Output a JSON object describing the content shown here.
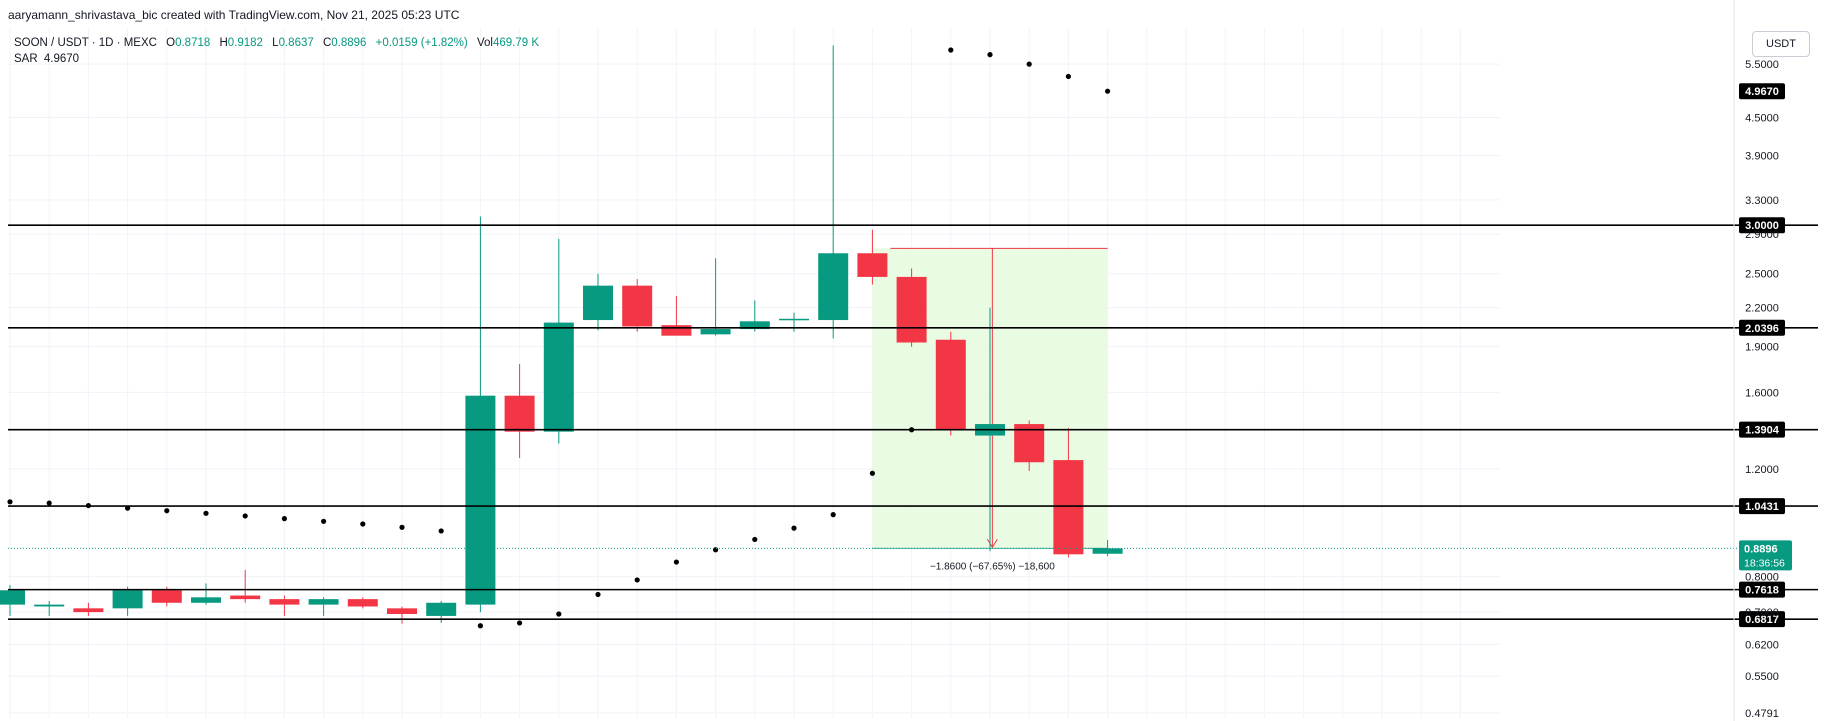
{
  "header": {
    "attribution": "aaryamann_shrivastava_bic created with TradingView.com, Nov 21, 2025 05:23 UTC"
  },
  "legend": {
    "symbol": "SOON / USDT · 1D · MEXC",
    "o_label": "O",
    "o_value": "0.8718",
    "h_label": "H",
    "h_value": "0.9182",
    "l_label": "L",
    "l_value": "0.8637",
    "c_label": "C",
    "c_value": "0.8896",
    "change": "+0.0159 (+1.82%)",
    "vol_label": "Vol",
    "vol_value": "469.79 K",
    "sar_label": "SAR",
    "sar_value": "4.9670"
  },
  "toolbar": {
    "currency_button": "USDT"
  },
  "colors": {
    "up": "#089981",
    "down": "#f23645",
    "level_line": "#000000",
    "range_fill": "#e8fbe0",
    "range_line": "#f23645"
  },
  "chart_data": {
    "type": "candlestick",
    "symbol": "SOON / USDT",
    "interval": "1D",
    "exchange": "MEXC",
    "y_scale": "log",
    "ylim": [
      0.47,
      6.3
    ],
    "grid": true,
    "y_ticks": [
      "5.5000",
      "4.5000",
      "3.9000",
      "3.3000",
      "2.9000",
      "2.5000",
      "2.2000",
      "1.9000",
      "1.6000",
      "1.2000",
      "0.8000",
      "0.7000",
      "0.6200",
      "0.5500",
      "0.4791"
    ],
    "candles": [
      {
        "o": 0.72,
        "h": 0.775,
        "l": 0.69,
        "c": 0.76
      },
      {
        "o": 0.715,
        "h": 0.73,
        "l": 0.69,
        "c": 0.72
      },
      {
        "o": 0.71,
        "h": 0.725,
        "l": 0.69,
        "c": 0.7
      },
      {
        "o": 0.71,
        "h": 0.77,
        "l": 0.69,
        "c": 0.76
      },
      {
        "o": 0.76,
        "h": 0.77,
        "l": 0.715,
        "c": 0.725
      },
      {
        "o": 0.725,
        "h": 0.78,
        "l": 0.72,
        "c": 0.74
      },
      {
        "o": 0.745,
        "h": 0.82,
        "l": 0.725,
        "c": 0.735
      },
      {
        "o": 0.735,
        "h": 0.745,
        "l": 0.69,
        "c": 0.72
      },
      {
        "o": 0.72,
        "h": 0.74,
        "l": 0.69,
        "c": 0.735
      },
      {
        "o": 0.735,
        "h": 0.74,
        "l": 0.71,
        "c": 0.715
      },
      {
        "o": 0.71,
        "h": 0.715,
        "l": 0.67,
        "c": 0.695
      },
      {
        "o": 0.69,
        "h": 0.73,
        "l": 0.672,
        "c": 0.725
      },
      {
        "o": 0.72,
        "h": 3.1,
        "l": 0.7,
        "c": 1.58
      },
      {
        "o": 1.58,
        "h": 1.78,
        "l": 1.25,
        "c": 1.38
      },
      {
        "o": 1.38,
        "h": 2.85,
        "l": 1.32,
        "c": 2.08
      },
      {
        "o": 2.1,
        "h": 2.5,
        "l": 2.02,
        "c": 2.39
      },
      {
        "o": 2.39,
        "h": 2.45,
        "l": 2.01,
        "c": 2.05
      },
      {
        "o": 2.06,
        "h": 2.3,
        "l": 1.99,
        "c": 1.98
      },
      {
        "o": 1.99,
        "h": 2.65,
        "l": 1.98,
        "c": 2.03
      },
      {
        "o": 2.03,
        "h": 2.26,
        "l": 2.01,
        "c": 2.09
      },
      {
        "o": 2.1,
        "h": 2.16,
        "l": 2.01,
        "c": 2.11
      },
      {
        "o": 2.1,
        "h": 5.9,
        "l": 1.96,
        "c": 2.7
      },
      {
        "o": 2.7,
        "h": 2.95,
        "l": 2.4,
        "c": 2.47
      },
      {
        "o": 2.47,
        "h": 2.55,
        "l": 1.9,
        "c": 1.93
      },
      {
        "o": 1.95,
        "h": 2.01,
        "l": 1.36,
        "c": 1.39
      },
      {
        "o": 1.36,
        "h": 2.2,
        "l": 0.88,
        "c": 1.42
      },
      {
        "o": 1.42,
        "h": 1.44,
        "l": 1.19,
        "c": 1.23
      },
      {
        "o": 1.24,
        "h": 1.4,
        "l": 0.86,
        "c": 0.87
      },
      {
        "o": 0.8718,
        "h": 0.9182,
        "l": 0.8637,
        "c": 0.8896
      }
    ],
    "sar": [
      {
        "i": 0,
        "v": 1.06
      },
      {
        "i": 1,
        "v": 1.055
      },
      {
        "i": 2,
        "v": 1.045
      },
      {
        "i": 3,
        "v": 1.035
      },
      {
        "i": 4,
        "v": 1.025
      },
      {
        "i": 5,
        "v": 1.015
      },
      {
        "i": 6,
        "v": 1.005
      },
      {
        "i": 7,
        "v": 0.995
      },
      {
        "i": 8,
        "v": 0.985
      },
      {
        "i": 9,
        "v": 0.975
      },
      {
        "i": 10,
        "v": 0.963
      },
      {
        "i": 11,
        "v": 0.95
      },
      {
        "i": 12,
        "v": 0.665
      },
      {
        "i": 13,
        "v": 0.672
      },
      {
        "i": 14,
        "v": 0.695
      },
      {
        "i": 15,
        "v": 0.748
      },
      {
        "i": 16,
        "v": 0.79
      },
      {
        "i": 17,
        "v": 0.845
      },
      {
        "i": 18,
        "v": 0.885
      },
      {
        "i": 19,
        "v": 0.92
      },
      {
        "i": 20,
        "v": 0.96
      },
      {
        "i": 21,
        "v": 1.01
      },
      {
        "i": 22,
        "v": 1.18
      },
      {
        "i": 23,
        "v": 1.39
      },
      {
        "i": 24,
        "v": 5.8
      },
      {
        "i": 25,
        "v": 5.7
      },
      {
        "i": 26,
        "v": 5.5
      },
      {
        "i": 27,
        "v": 5.25
      },
      {
        "i": 28,
        "v": 4.967
      }
    ],
    "levels": [
      {
        "value": 3.0,
        "label": "3.0000"
      },
      {
        "value": 2.0396,
        "label": "2.0396"
      },
      {
        "value": 1.3904,
        "label": "1.3904"
      },
      {
        "value": 1.0431,
        "label": "1.0431"
      },
      {
        "value": 0.7618,
        "label": "0.7618"
      },
      {
        "value": 0.6817,
        "label": "0.6817"
      }
    ],
    "sar_tag": "4.9670",
    "price_tag": {
      "value": 0.8896,
      "price": "0.8896",
      "countdown": "18:36:56"
    },
    "measure": {
      "from_index": 22,
      "to_index": 28,
      "top": 2.75,
      "bottom": 0.89,
      "label": "−1.8600 (−67.65%) −18,600"
    }
  }
}
